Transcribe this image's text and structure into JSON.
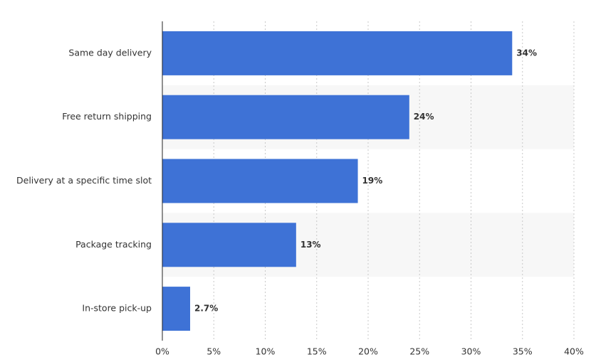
{
  "chart_data": {
    "type": "bar",
    "orientation": "horizontal",
    "categories": [
      "Same day delivery",
      "Free return shipping",
      "Delivery at a specific time slot",
      "Package tracking",
      "In-store pick-up"
    ],
    "values": [
      34,
      24,
      19,
      13,
      2.7
    ],
    "value_labels": [
      "34%",
      "24%",
      "19%",
      "13%",
      "2.7%"
    ],
    "color": "#3e72d6",
    "xlim": [
      0,
      40
    ],
    "xticks": [
      {
        "value": 0,
        "label": "0%"
      },
      {
        "value": 5,
        "label": "5%"
      },
      {
        "value": 10,
        "label": "10%"
      },
      {
        "value": 15,
        "label": "15%"
      },
      {
        "value": 20,
        "label": "20%"
      },
      {
        "value": 25,
        "label": "25%"
      },
      {
        "value": 30,
        "label": "30%"
      },
      {
        "value": 35,
        "label": "35%"
      },
      {
        "value": 40,
        "label": "40%"
      }
    ],
    "grid": true,
    "striped": true
  }
}
